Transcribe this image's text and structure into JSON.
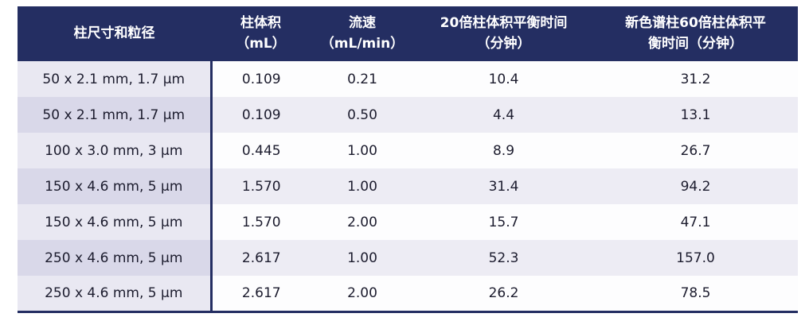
{
  "colors": {
    "header_navy": "#242e62",
    "first_col_odd": "#e9e8f2",
    "first_col_even": "#d9d8e9",
    "cell_odd": "#fdfdfe",
    "cell_even": "#edecf4",
    "header_text": "#ffffff",
    "body_text": "#1c1c2e"
  },
  "table": {
    "columns": [
      {
        "lines": [
          "柱尺寸和粒径"
        ]
      },
      {
        "lines": [
          "柱体积",
          "（mL）"
        ]
      },
      {
        "lines": [
          "流速",
          "（mL/min）"
        ]
      },
      {
        "lines": [
          "20倍柱体积平衡时间",
          "（分钟）"
        ]
      },
      {
        "lines": [
          "新色谱柱60倍柱体积平",
          "衡时间（分钟）"
        ]
      }
    ],
    "rows": [
      [
        "50 x 2.1 mm, 1.7 μm",
        "0.109",
        "0.21",
        "10.4",
        "31.2"
      ],
      [
        "50 x 2.1 mm, 1.7 μm",
        "0.109",
        "0.50",
        "4.4",
        "13.1"
      ],
      [
        "100 x 3.0 mm, 3 μm",
        "0.445",
        "1.00",
        "8.9",
        "26.7"
      ],
      [
        "150 x 4.6 mm, 5 μm",
        "1.570",
        "1.00",
        "31.4",
        "94.2"
      ],
      [
        "150 x 4.6 mm, 5 μm",
        "1.570",
        "2.00",
        "15.7",
        "47.1"
      ],
      [
        "250 x 4.6 mm, 5 μm",
        "2.617",
        "1.00",
        "52.3",
        "157.0"
      ],
      [
        "250 x 4.6 mm, 5 μm",
        "2.617",
        "2.00",
        "26.2",
        "78.5"
      ]
    ]
  }
}
